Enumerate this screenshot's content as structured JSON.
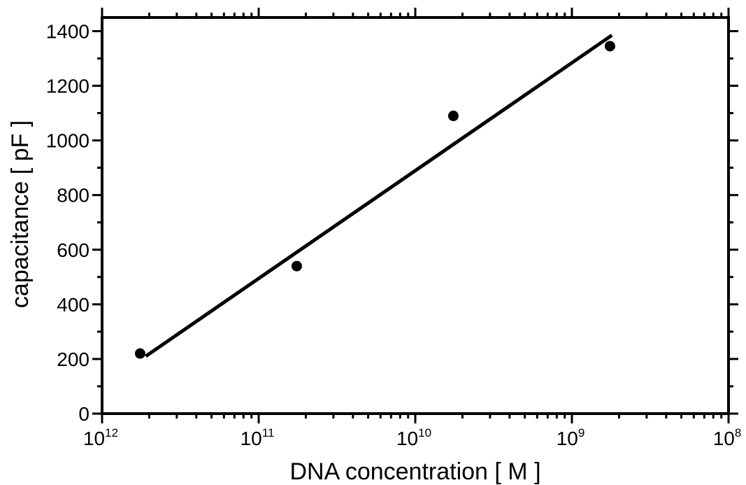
{
  "chart_data": {
    "type": "scatter",
    "xlabel": "DNA concentration [ M ]",
    "ylabel": "capacitance [ pF ]",
    "xscale": "log",
    "xlim": [
      1e-12,
      1e-08
    ],
    "ylim": [
      0,
      1450
    ],
    "x_ticks": [
      {
        "base": "10",
        "exp": "12",
        "value": 1e-12
      },
      {
        "base": "10",
        "exp": "11",
        "value": 1e-11
      },
      {
        "base": "10",
        "exp": "10",
        "value": 1e-10
      },
      {
        "base": "10",
        "exp": "9",
        "value": 1e-09
      },
      {
        "base": "10",
        "exp": "8",
        "value": 1e-08
      }
    ],
    "y_ticks": [
      0,
      200,
      400,
      600,
      800,
      1000,
      1200,
      1400
    ],
    "grid": false,
    "series": [
      {
        "type": "scatter",
        "x": [
          1.75e-12,
          1.75e-11,
          1.75e-10,
          1.75e-09
        ],
        "y": [
          220,
          540,
          1090,
          1345
        ]
      },
      {
        "type": "line",
        "x": [
          1.9e-12,
          1.8e-09
        ],
        "y": [
          210,
          1385
        ]
      }
    ]
  }
}
